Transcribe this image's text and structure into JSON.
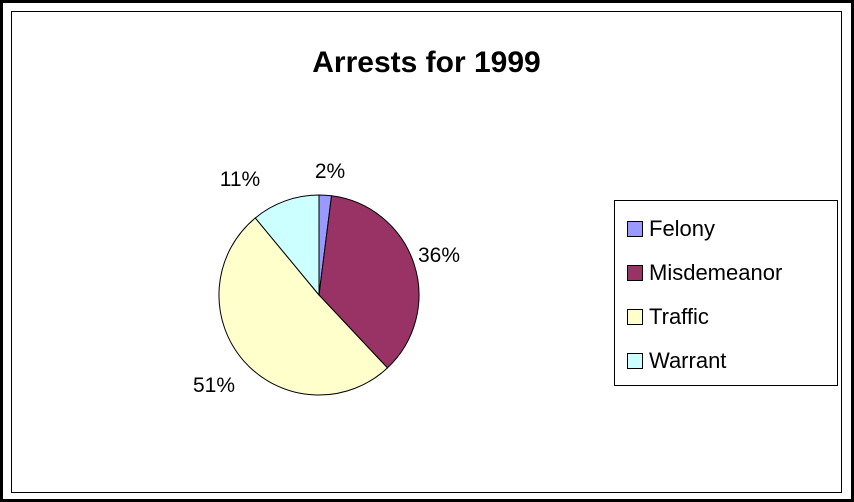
{
  "chart_data": {
    "type": "pie",
    "title": "Arrests for 1999",
    "categories": [
      "Felony",
      "Misdemeanor",
      "Traffic",
      "Warrant"
    ],
    "values": [
      2,
      36,
      51,
      11
    ],
    "labels": [
      "2%",
      "36%",
      "51%",
      "11%"
    ],
    "colors": [
      "#9999ff",
      "#993366",
      "#ffffcc",
      "#ccffff"
    ],
    "legend_position": "right"
  }
}
